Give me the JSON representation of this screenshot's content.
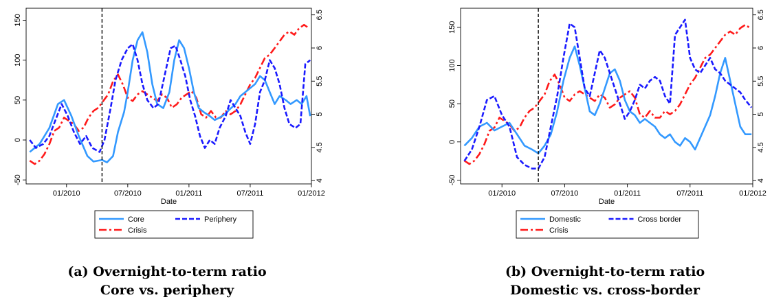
{
  "chart_data": [
    {
      "type": "line",
      "caption_line1": "(a) Overnight-to-term ratio",
      "caption_line2": "Core vs. periphery",
      "xlabel": "Date",
      "x_ticks": [
        "01/2010",
        "07/2010",
        "01/2011",
        "07/2011",
        "01/2012"
      ],
      "y_left_ticks": [
        "-50",
        "0",
        "50",
        "100",
        "150"
      ],
      "y_right_ticks": [
        "4",
        "4.5",
        "5",
        "5.5",
        "6",
        "6.5"
      ],
      "y_left_range": [
        -55,
        165
      ],
      "y_right_range": [
        3.95,
        6.6
      ],
      "x_range": [
        2009.67,
        2012.0
      ],
      "event_line_x": 2010.29,
      "legend": [
        "Core",
        "Periphery",
        "Crisis"
      ],
      "series": [
        {
          "name": "Core",
          "color": "#3399ff",
          "dash": "solid",
          "axis": "left",
          "x": [
            2009.7,
            2009.78,
            2009.86,
            2009.93,
            2009.98,
            2010.04,
            2010.1,
            2010.17,
            2010.22,
            2010.29,
            2010.33,
            2010.38,
            2010.42,
            2010.47,
            2010.5,
            2010.54,
            2010.58,
            2010.62,
            2010.66,
            2010.7,
            2010.74,
            2010.79,
            2010.84,
            2010.88,
            2010.92,
            2010.96,
            2011.0,
            2011.04,
            2011.08,
            2011.12,
            2011.17,
            2011.21,
            2011.25,
            2011.29,
            2011.33,
            2011.38,
            2011.42,
            2011.46,
            2011.5,
            2011.54,
            2011.58,
            2011.62,
            2011.66,
            2011.7,
            2011.74,
            2011.79,
            2011.83,
            2011.88,
            2011.92,
            2011.96,
            2011.99
          ],
          "y": [
            -15,
            -5,
            15,
            45,
            50,
            30,
            5,
            -20,
            -27,
            -25,
            -28,
            -20,
            10,
            35,
            60,
            100,
            125,
            135,
            110,
            70,
            45,
            40,
            60,
            100,
            125,
            115,
            90,
            60,
            40,
            35,
            30,
            25,
            28,
            32,
            38,
            45,
            55,
            60,
            65,
            70,
            80,
            75,
            60,
            45,
            55,
            50,
            45,
            50,
            45,
            55,
            30
          ]
        },
        {
          "name": "Periphery",
          "color": "#1a1aff",
          "dash": "dashed",
          "axis": "left",
          "x": [
            2009.7,
            2009.75,
            2009.81,
            2009.86,
            2009.91,
            2009.96,
            2010.01,
            2010.06,
            2010.11,
            2010.16,
            2010.21,
            2010.27,
            2010.31,
            2010.36,
            2010.4,
            2010.45,
            2010.5,
            2010.54,
            2010.58,
            2010.62,
            2010.66,
            2010.71,
            2010.75,
            2010.8,
            2010.85,
            2010.89,
            2010.93,
            2010.97,
            2011.01,
            2011.05,
            2011.09,
            2011.13,
            2011.17,
            2011.21,
            2011.25,
            2011.3,
            2011.34,
            2011.38,
            2011.42,
            2011.46,
            2011.5,
            2011.54,
            2011.58,
            2011.62,
            2011.66,
            2011.7,
            2011.74,
            2011.78,
            2011.82,
            2011.87,
            2011.91,
            2011.95,
            2011.99
          ],
          "y": [
            0,
            -10,
            -5,
            5,
            25,
            45,
            30,
            10,
            -5,
            5,
            -10,
            -15,
            0,
            40,
            75,
            100,
            115,
            120,
            100,
            70,
            50,
            40,
            45,
            80,
            115,
            118,
            100,
            80,
            50,
            30,
            5,
            -10,
            0,
            -5,
            15,
            30,
            50,
            40,
            30,
            10,
            -5,
            20,
            60,
            75,
            100,
            90,
            70,
            40,
            20,
            15,
            20,
            95,
            100
          ]
        },
        {
          "name": "Crisis",
          "color": "#ff1a1a",
          "dash": "dashdot",
          "axis": "right",
          "x": [
            2009.7,
            2009.74,
            2009.78,
            2009.82,
            2009.86,
            2009.9,
            2009.94,
            2009.98,
            2010.02,
            2010.06,
            2010.1,
            2010.14,
            2010.18,
            2010.22,
            2010.26,
            2010.3,
            2010.34,
            2010.38,
            2010.42,
            2010.46,
            2010.5,
            2010.54,
            2010.58,
            2010.62,
            2010.66,
            2010.7,
            2010.74,
            2010.78,
            2010.82,
            2010.86,
            2010.9,
            2010.94,
            2010.98,
            2011.02,
            2011.06,
            2011.1,
            2011.14,
            2011.18,
            2011.22,
            2011.26,
            2011.3,
            2011.34,
            2011.38,
            2011.42,
            2011.46,
            2011.5,
            2011.54,
            2011.58,
            2011.62,
            2011.66,
            2011.7,
            2011.74,
            2011.78,
            2011.82,
            2011.86,
            2011.9,
            2011.94,
            2011.98
          ],
          "y": [
            4.3,
            4.25,
            4.3,
            4.4,
            4.55,
            4.75,
            4.8,
            4.95,
            4.9,
            4.85,
            4.75,
            4.8,
            4.95,
            5.05,
            5.1,
            5.2,
            5.3,
            5.5,
            5.6,
            5.45,
            5.25,
            5.2,
            5.3,
            5.35,
            5.3,
            5.25,
            5.2,
            5.3,
            5.25,
            5.1,
            5.15,
            5.25,
            5.3,
            5.35,
            5.25,
            5.0,
            4.95,
            5.05,
            4.95,
            4.95,
            5.05,
            5.0,
            5.05,
            5.15,
            5.3,
            5.45,
            5.55,
            5.7,
            5.85,
            5.9,
            6.0,
            6.1,
            6.2,
            6.25,
            6.2,
            6.3,
            6.35,
            6.3
          ]
        }
      ]
    },
    {
      "type": "line",
      "caption_line1": "(b) Overnight-to-term ratio",
      "caption_line2": "Domestic vs. cross-border",
      "xlabel": "Date",
      "x_ticks": [
        "01/2010",
        "07/2010",
        "01/2011",
        "07/2011",
        "01/2012"
      ],
      "y_left_ticks": [
        "-50",
        "0",
        "50",
        "100",
        "150"
      ],
      "y_right_ticks": [
        "4",
        "4.5",
        "5",
        "5.5",
        "6",
        "6.5"
      ],
      "y_left_range": [
        -55,
        175
      ],
      "y_right_range": [
        3.95,
        6.6
      ],
      "x_range": [
        2009.67,
        2012.0
      ],
      "event_line_x": 2010.29,
      "legend": [
        "Domestic",
        "Cross border",
        "Crisis"
      ],
      "series": [
        {
          "name": "Domestic",
          "color": "#3399ff",
          "dash": "solid",
          "axis": "left",
          "x": [
            2009.7,
            2009.76,
            2009.82,
            2009.88,
            2009.94,
            2010.0,
            2010.06,
            2010.12,
            2010.18,
            2010.24,
            2010.29,
            2010.34,
            2010.39,
            2010.44,
            2010.49,
            2010.54,
            2010.58,
            2010.62,
            2010.66,
            2010.7,
            2010.74,
            2010.78,
            2010.82,
            2010.86,
            2010.9,
            2010.94,
            2010.98,
            2011.02,
            2011.06,
            2011.1,
            2011.14,
            2011.18,
            2011.22,
            2011.26,
            2011.3,
            2011.34,
            2011.38,
            2011.42,
            2011.46,
            2011.5,
            2011.54,
            2011.58,
            2011.62,
            2011.66,
            2011.7,
            2011.74,
            2011.78,
            2011.82,
            2011.86,
            2011.9,
            2011.94,
            2011.99
          ],
          "y": [
            -5,
            5,
            20,
            25,
            15,
            20,
            25,
            10,
            -5,
            -10,
            -15,
            -5,
            10,
            40,
            80,
            110,
            125,
            100,
            70,
            40,
            35,
            50,
            70,
            90,
            95,
            80,
            55,
            40,
            35,
            25,
            30,
            25,
            20,
            10,
            5,
            10,
            0,
            -5,
            5,
            0,
            -10,
            5,
            20,
            35,
            60,
            90,
            110,
            80,
            50,
            20,
            10,
            10
          ]
        },
        {
          "name": "Cross border",
          "color": "#1a1aff",
          "dash": "dashed",
          "axis": "left",
          "x": [
            2009.7,
            2009.76,
            2009.82,
            2009.88,
            2009.94,
            2010.0,
            2010.06,
            2010.12,
            2010.18,
            2010.24,
            2010.29,
            2010.34,
            2010.39,
            2010.44,
            2010.49,
            2010.54,
            2010.58,
            2010.62,
            2010.66,
            2010.7,
            2010.74,
            2010.78,
            2010.82,
            2010.86,
            2010.9,
            2010.94,
            2010.98,
            2011.02,
            2011.06,
            2011.1,
            2011.14,
            2011.18,
            2011.22,
            2011.26,
            2011.3,
            2011.34,
            2011.38,
            2011.42,
            2011.46,
            2011.5,
            2011.54,
            2011.58,
            2011.62,
            2011.66,
            2011.7,
            2011.74,
            2011.78,
            2011.82,
            2011.86,
            2011.9,
            2011.94,
            2011.99
          ],
          "y": [
            -25,
            -10,
            20,
            55,
            60,
            35,
            20,
            -20,
            -30,
            -35,
            -35,
            -20,
            20,
            60,
            110,
            155,
            150,
            110,
            70,
            60,
            90,
            120,
            110,
            90,
            70,
            50,
            30,
            40,
            55,
            75,
            70,
            80,
            85,
            80,
            60,
            50,
            140,
            150,
            160,
            110,
            95,
            90,
            100,
            110,
            95,
            90,
            80,
            75,
            70,
            65,
            55,
            45
          ]
        },
        {
          "name": "Crisis",
          "color": "#ff1a1a",
          "dash": "dashdot",
          "axis": "right",
          "x": [
            2009.7,
            2009.74,
            2009.78,
            2009.82,
            2009.86,
            2009.9,
            2009.94,
            2009.98,
            2010.02,
            2010.06,
            2010.1,
            2010.14,
            2010.18,
            2010.22,
            2010.26,
            2010.3,
            2010.34,
            2010.38,
            2010.42,
            2010.46,
            2010.5,
            2010.54,
            2010.58,
            2010.62,
            2010.66,
            2010.7,
            2010.74,
            2010.78,
            2010.82,
            2010.86,
            2010.9,
            2010.94,
            2010.98,
            2011.02,
            2011.06,
            2011.1,
            2011.14,
            2011.18,
            2011.22,
            2011.26,
            2011.3,
            2011.34,
            2011.38,
            2011.42,
            2011.46,
            2011.5,
            2011.54,
            2011.58,
            2011.62,
            2011.66,
            2011.7,
            2011.74,
            2011.78,
            2011.82,
            2011.86,
            2011.9,
            2011.94,
            2011.98
          ],
          "y": [
            4.3,
            4.25,
            4.3,
            4.4,
            4.55,
            4.75,
            4.8,
            4.95,
            4.9,
            4.85,
            4.75,
            4.8,
            4.95,
            5.05,
            5.1,
            5.2,
            5.3,
            5.5,
            5.6,
            5.45,
            5.25,
            5.2,
            5.3,
            5.35,
            5.3,
            5.25,
            5.2,
            5.3,
            5.25,
            5.1,
            5.15,
            5.25,
            5.3,
            5.35,
            5.25,
            5.0,
            4.95,
            5.05,
            4.95,
            4.95,
            5.05,
            5.0,
            5.05,
            5.15,
            5.3,
            5.45,
            5.55,
            5.7,
            5.85,
            5.9,
            6.0,
            6.1,
            6.2,
            6.25,
            6.2,
            6.3,
            6.35,
            6.3
          ]
        }
      ]
    }
  ]
}
